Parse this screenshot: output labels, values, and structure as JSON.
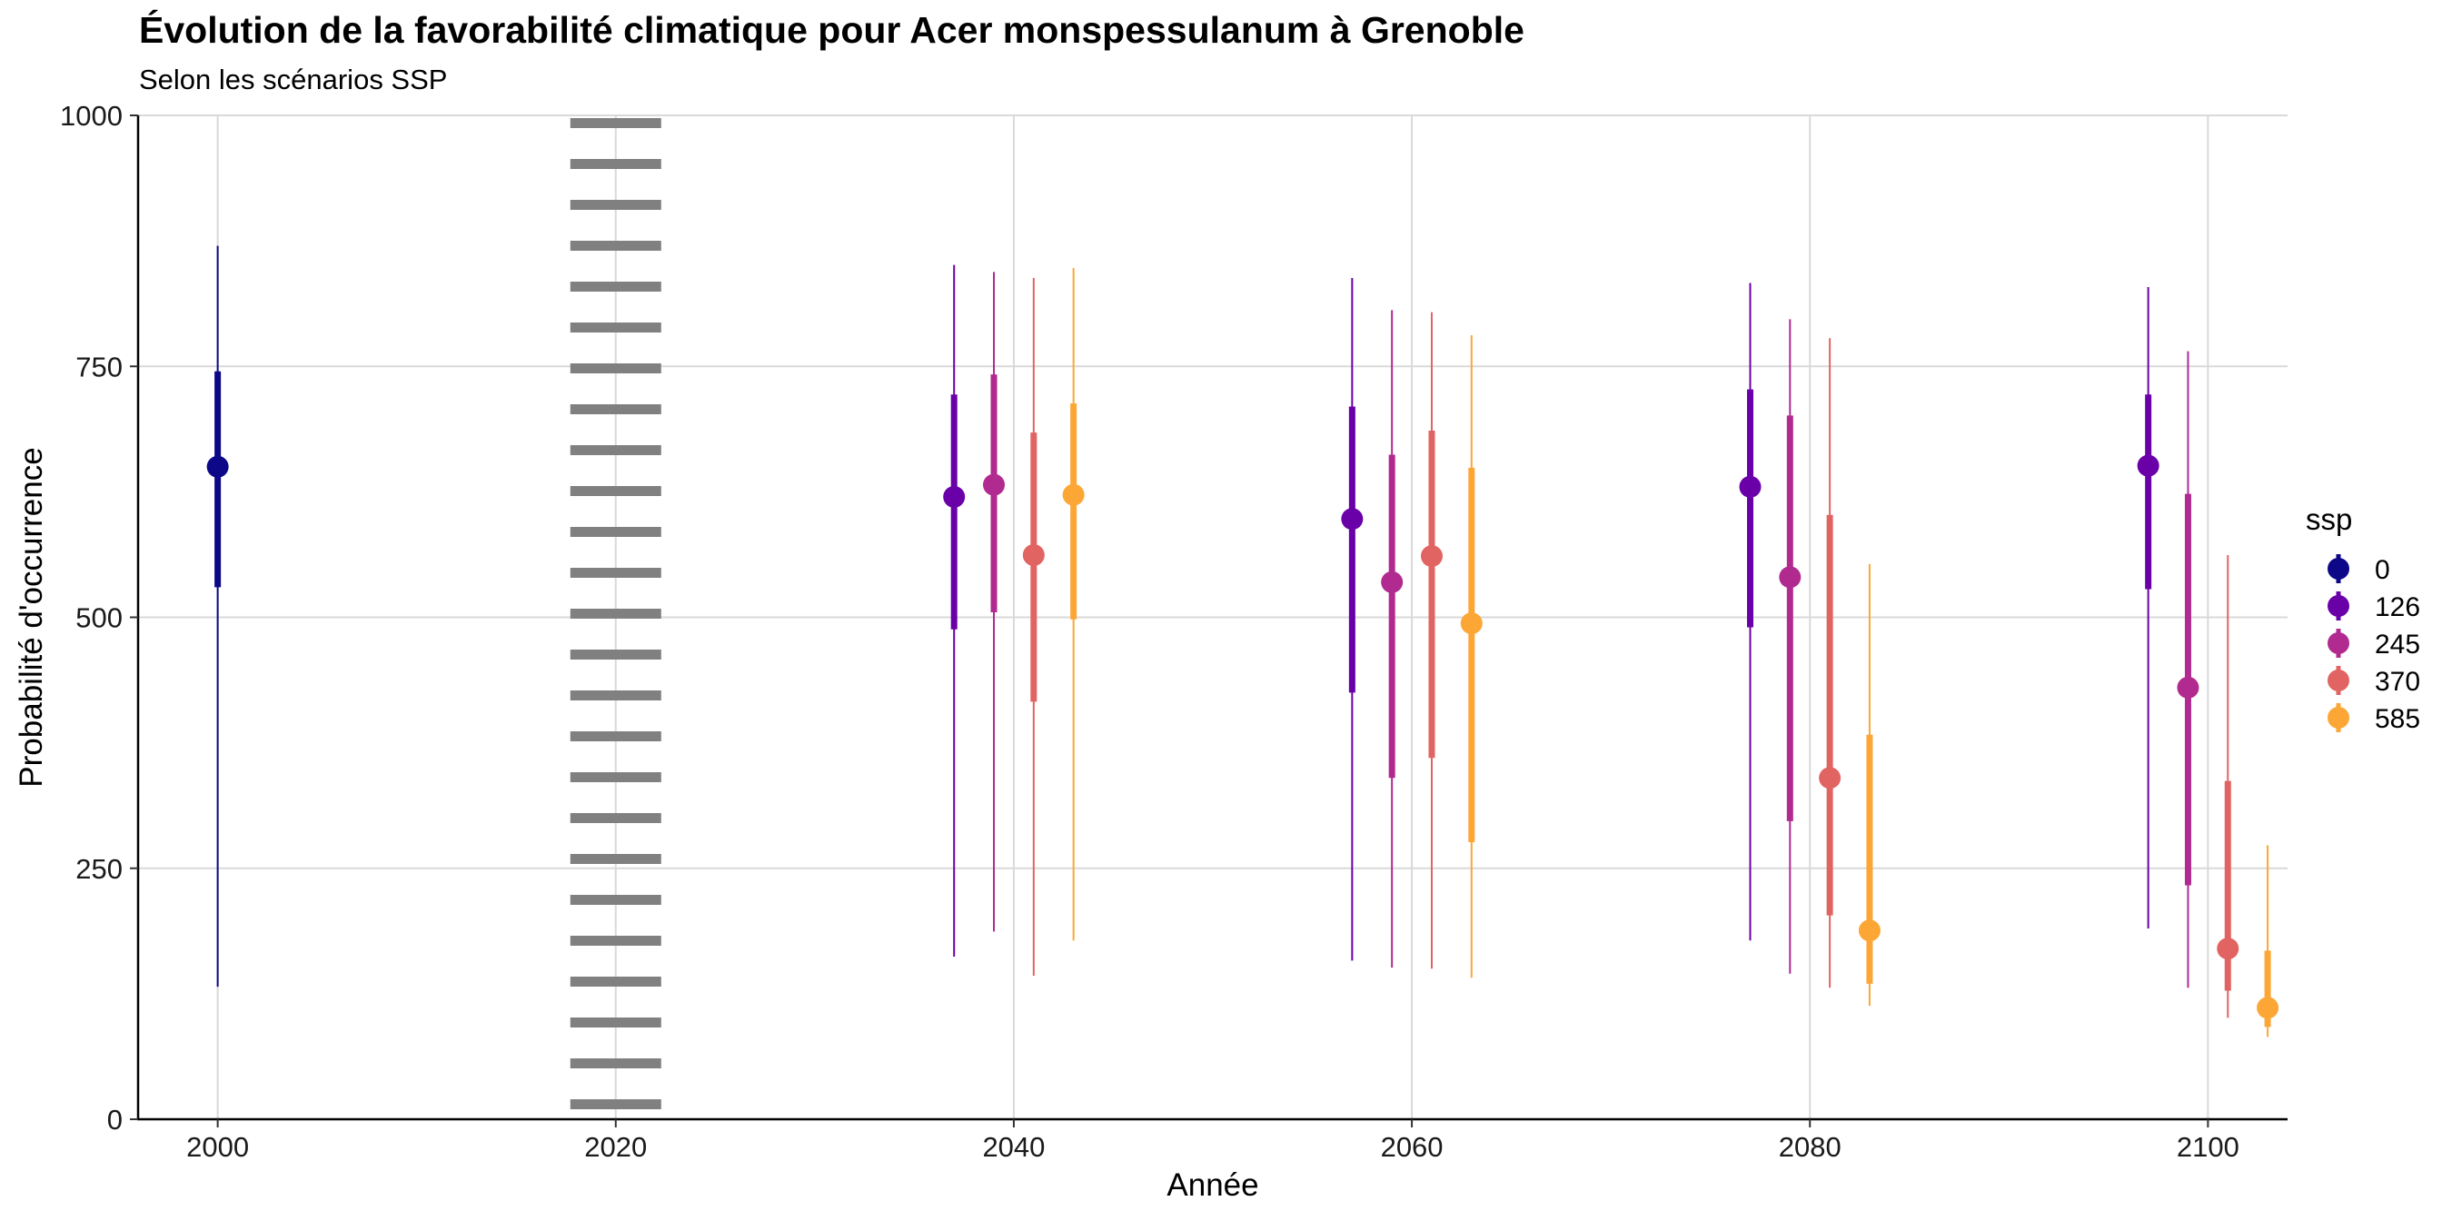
{
  "title": "Évolution de la favorabilité climatique pour Acer monspessulanum à Grenoble",
  "subtitle": "Selon les scénarios SSP",
  "chart_data": {
    "type": "pointrange",
    "title": "Évolution de la favorabilité climatique pour Acer monspessulanum à Grenoble",
    "subtitle": "Selon les scénarios SSP",
    "xlabel": "Année",
    "ylabel": "Probabilité d'occurrence",
    "xlim": [
      1996,
      2104
    ],
    "ylim": [
      0,
      1000
    ],
    "x_ticks": [
      2000,
      2020,
      2040,
      2060,
      2080,
      2100
    ],
    "y_ticks": [
      0,
      250,
      500,
      750,
      1000
    ],
    "grid": true,
    "reference_line": {
      "x": 2020,
      "style": "dotted",
      "color": "#808080"
    },
    "legend": {
      "title": "ssp",
      "position": "right"
    },
    "series": [
      {
        "name": "0",
        "color": "#0D0887",
        "points": [
          {
            "x": 2000,
            "y": 650,
            "inner": [
              530,
              745
            ],
            "outer": [
              132,
              870
            ]
          }
        ]
      },
      {
        "name": "126",
        "color": "#6A00A8",
        "points": [
          {
            "x": 2037,
            "y": 620,
            "inner": [
              488,
              722
            ],
            "outer": [
              162,
              851
            ]
          },
          {
            "x": 2057,
            "y": 598,
            "inner": [
              425,
              710
            ],
            "outer": [
              158,
              838
            ]
          },
          {
            "x": 2077,
            "y": 630,
            "inner": [
              490,
              727
            ],
            "outer": [
              178,
              833
            ]
          },
          {
            "x": 2097,
            "y": 651,
            "inner": [
              528,
              722
            ],
            "outer": [
              190,
              829
            ]
          }
        ]
      },
      {
        "name": "245",
        "color": "#B12A90",
        "points": [
          {
            "x": 2039,
            "y": 632,
            "inner": [
              505,
              742
            ],
            "outer": [
              187,
              844
            ]
          },
          {
            "x": 2059,
            "y": 535,
            "inner": [
              340,
              662
            ],
            "outer": [
              151,
              806
            ]
          },
          {
            "x": 2079,
            "y": 540,
            "inner": [
              297,
              701
            ],
            "outer": [
              145,
              797
            ]
          },
          {
            "x": 2099,
            "y": 430,
            "inner": [
              233,
              623
            ],
            "outer": [
              131,
              765
            ]
          }
        ]
      },
      {
        "name": "370",
        "color": "#E16462",
        "points": [
          {
            "x": 2041,
            "y": 562,
            "inner": [
              416,
              684
            ],
            "outer": [
              143,
              838
            ]
          },
          {
            "x": 2061,
            "y": 561,
            "inner": [
              360,
              686
            ],
            "outer": [
              150,
              804
            ]
          },
          {
            "x": 2081,
            "y": 340,
            "inner": [
              203,
              602
            ],
            "outer": [
              131,
              778
            ]
          },
          {
            "x": 2101,
            "y": 170,
            "inner": [
              128,
              337
            ],
            "outer": [
              101,
              562
            ]
          }
        ]
      },
      {
        "name": "585",
        "color": "#FCA636",
        "points": [
          {
            "x": 2043,
            "y": 622,
            "inner": [
              498,
              713
            ],
            "outer": [
              178,
              848
            ]
          },
          {
            "x": 2063,
            "y": 494,
            "inner": [
              276,
              649
            ],
            "outer": [
              141,
              781
            ]
          },
          {
            "x": 2083,
            "y": 188,
            "inner": [
              135,
              383
            ],
            "outer": [
              113,
              553
            ]
          },
          {
            "x": 2103,
            "y": 111,
            "inner": [
              92,
              168
            ],
            "outer": [
              82,
              273
            ]
          }
        ]
      }
    ]
  }
}
